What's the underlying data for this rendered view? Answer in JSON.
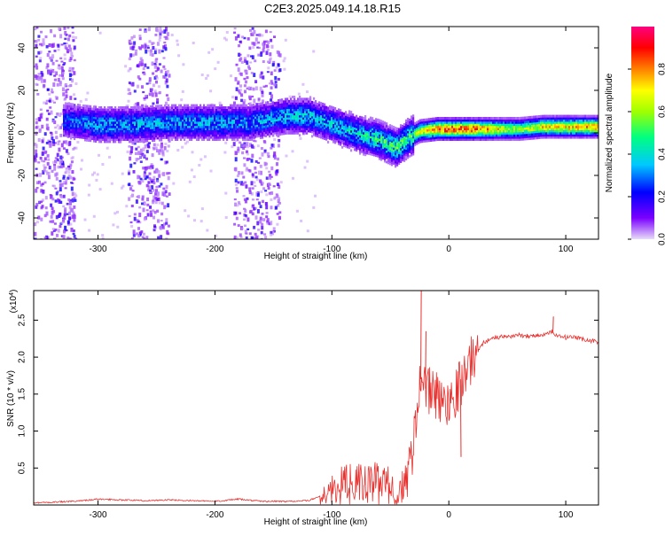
{
  "title": "C2E3.2025.049.14.18.R15",
  "chart_data": [
    {
      "type": "heatmap",
      "xlabel": "Height of straight line (km)",
      "ylabel": "Frequency (Hz)",
      "xlim": [
        -355,
        128
      ],
      "ylim": [
        -50,
        50
      ],
      "xticks": [
        -300,
        -200,
        -100,
        0,
        100
      ],
      "yticks": [
        -40,
        -20,
        0,
        20,
        40
      ],
      "colorbar": {
        "label": "Normalized spectral amplitude",
        "range": [
          0,
          1
        ],
        "ticks": [
          0.0,
          0.2,
          0.4,
          0.6,
          0.8
        ],
        "colors": [
          "#e8dcf8",
          "#7a00ff",
          "#0000ff",
          "#00c8ff",
          "#00ff80",
          "#a0ff00",
          "#ffff00",
          "#ff8000",
          "#ff0000",
          "#ff0080"
        ]
      },
      "noise_bands": [
        [
          -355,
          -320
        ],
        [
          -275,
          -240
        ],
        [
          -185,
          -145
        ]
      ],
      "ridge": [
        {
          "x": -330,
          "f": 6,
          "a": 0.3
        },
        {
          "x": -300,
          "f": 4,
          "a": 0.4
        },
        {
          "x": -270,
          "f": 4,
          "a": 0.4
        },
        {
          "x": -240,
          "f": 5,
          "a": 0.38
        },
        {
          "x": -200,
          "f": 5,
          "a": 0.4
        },
        {
          "x": -170,
          "f": 5,
          "a": 0.38
        },
        {
          "x": -140,
          "f": 8,
          "a": 0.42
        },
        {
          "x": -120,
          "f": 8,
          "a": 0.45
        },
        {
          "x": -100,
          "f": 4,
          "a": 0.42
        },
        {
          "x": -80,
          "f": 0,
          "a": 0.45
        },
        {
          "x": -60,
          "f": -3,
          "a": 0.55
        },
        {
          "x": -45,
          "f": -7,
          "a": 0.6
        },
        {
          "x": -35,
          "f": -2,
          "a": 0.55
        },
        {
          "x": -25,
          "f": 1,
          "a": 0.7
        },
        {
          "x": -10,
          "f": 2,
          "a": 0.9
        },
        {
          "x": 0,
          "f": 2,
          "a": 0.92
        },
        {
          "x": 20,
          "f": 2,
          "a": 0.9
        },
        {
          "x": 40,
          "f": 2,
          "a": 0.75
        },
        {
          "x": 60,
          "f": 2,
          "a": 0.6
        },
        {
          "x": 80,
          "f": 3,
          "a": 0.75
        },
        {
          "x": 100,
          "f": 3,
          "a": 0.78
        },
        {
          "x": 128,
          "f": 3,
          "a": 0.8
        }
      ]
    },
    {
      "type": "line",
      "xlabel": "Height of straight line (km)",
      "ylabel": "SNR (10 * v/v)",
      "y_multiplier": "(x10",
      "y_multiplier_exp": "4",
      "y_multiplier_close": ")",
      "xlim": [
        -355,
        128
      ],
      "ylim": [
        0,
        2.9
      ],
      "xticks": [
        -300,
        -200,
        -100,
        0,
        100
      ],
      "yticks": [
        0.5,
        1.0,
        1.5,
        2.0,
        2.5
      ],
      "ytick_labels": [
        "0.5",
        "1.0",
        "1.5",
        "2.0",
        "2.5"
      ],
      "color": "#e8312e",
      "series": [
        {
          "x": [
            -355,
            -320,
            -300,
            -260,
            -240,
            -200,
            -180,
            -160,
            -140,
            -120,
            -110,
            -100,
            -90,
            -80,
            -70,
            -60,
            -50,
            -45,
            -40,
            -35,
            -30,
            -27,
            -25,
            -22,
            -18,
            -15,
            -10,
            -5,
            0,
            5,
            10,
            15,
            20,
            25,
            30,
            35,
            40,
            50,
            60,
            70,
            80,
            85,
            88,
            90,
            95,
            100,
            110,
            120,
            128
          ],
          "y": [
            0.03,
            0.05,
            0.08,
            0.06,
            0.07,
            0.05,
            0.08,
            0.05,
            0.05,
            0.06,
            0.12,
            0.22,
            0.3,
            0.32,
            0.3,
            0.33,
            0.28,
            0.2,
            0.18,
            0.45,
            0.9,
            1.4,
            1.75,
            1.6,
            1.55,
            1.6,
            1.5,
            1.4,
            1.45,
            1.55,
            1.7,
            1.85,
            2.0,
            2.1,
            2.2,
            2.25,
            2.27,
            2.28,
            2.3,
            2.29,
            2.3,
            2.32,
            2.35,
            2.3,
            2.28,
            2.27,
            2.26,
            2.23,
            2.21
          ]
        }
      ],
      "spikes": [
        {
          "x": -24,
          "y": 2.9
        },
        {
          "x": -20,
          "y": 2.35
        },
        {
          "x": 10,
          "y": 0.65
        },
        {
          "x": 89,
          "y": 2.55
        }
      ]
    }
  ]
}
